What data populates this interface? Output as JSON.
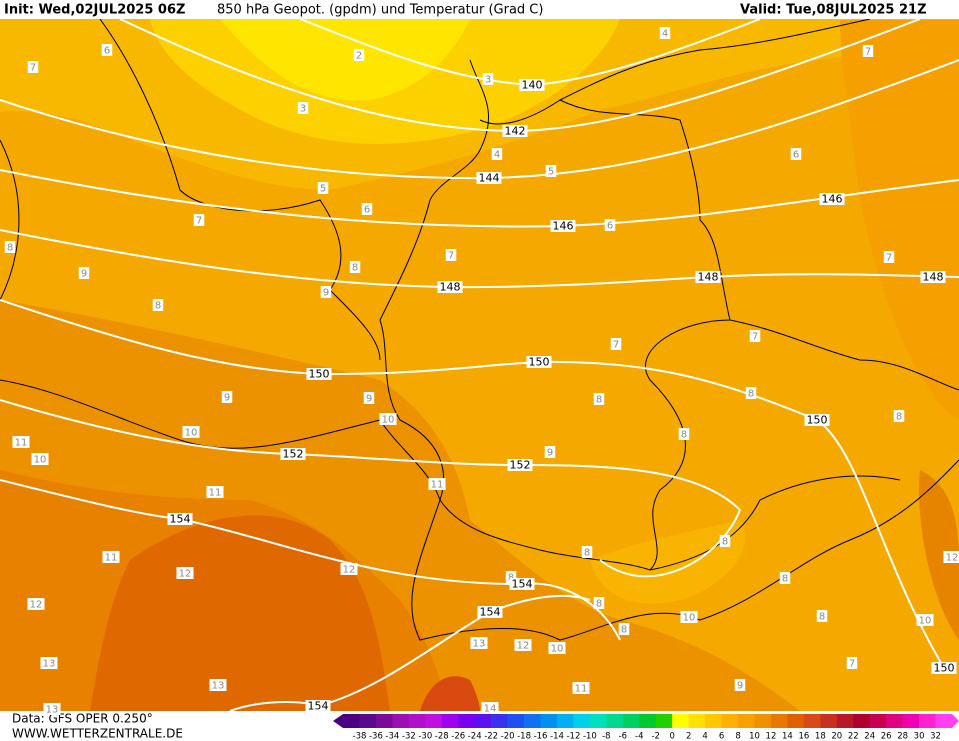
{
  "header": {
    "init": "Init: Wed,02JUL2025 06Z",
    "title": "850 hPa Geopot. (gpdm) und Temperatur (Grad C)",
    "valid": "Valid: Tue,08JUL2025 21Z"
  },
  "footer": {
    "source": "Data: GFS OPER 0.250°",
    "website": "WWW.WETTERZENTRALE.DE"
  },
  "geopotential_labels": [
    140,
    142,
    144,
    146,
    146,
    148,
    148,
    148,
    150,
    150,
    150,
    150,
    152,
    152,
    154,
    154,
    154,
    154
  ],
  "temperature_labels": [
    6,
    7,
    2,
    3,
    4,
    3,
    7,
    4,
    5,
    6,
    5,
    6,
    7,
    6,
    8,
    7,
    7,
    8,
    9,
    9,
    8,
    7,
    7,
    8,
    9,
    9,
    8,
    8,
    10,
    10,
    8,
    11,
    10,
    9,
    11,
    11,
    8,
    8,
    11,
    12,
    12,
    8,
    12,
    8,
    10,
    8,
    8,
    10,
    13,
    12,
    10,
    7,
    13,
    13,
    11,
    9,
    14,
    13,
    12,
    8
  ],
  "colorbar_labels": [
    -38,
    -36,
    -34,
    -32,
    -30,
    -28,
    -26,
    -24,
    -22,
    -20,
    -18,
    -16,
    -14,
    -12,
    -10,
    -8,
    -6,
    -4,
    -2,
    0,
    2,
    4,
    6,
    8,
    10,
    12,
    14,
    16,
    18,
    20,
    22,
    24,
    26,
    28,
    30,
    32
  ]
}
